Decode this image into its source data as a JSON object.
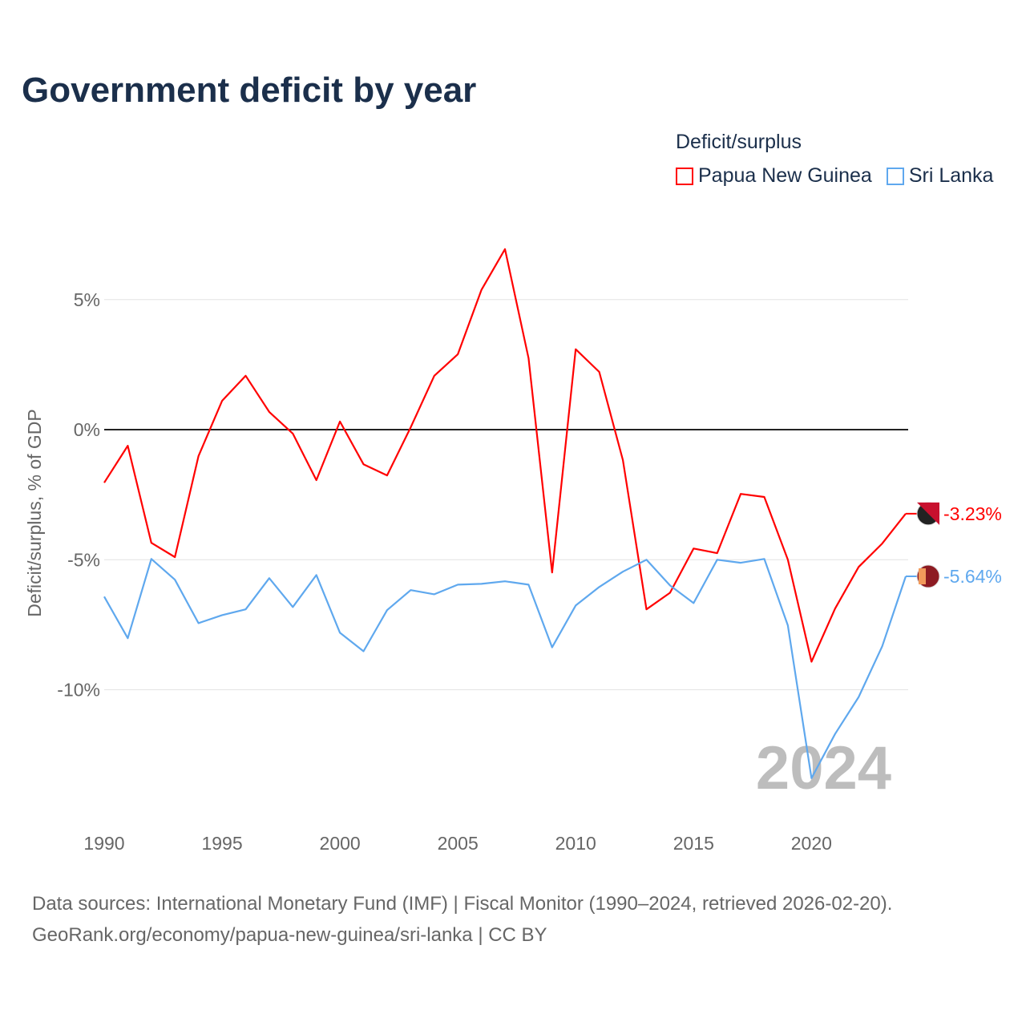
{
  "chart_data": {
    "type": "line",
    "title": "Government deficit by year",
    "ylabel": "Deficit/surplus, % of GDP",
    "xlabel": "",
    "legend_title": "Deficit/surplus",
    "legend_position": "top-right",
    "ylim": [
      -14.5,
      8.5
    ],
    "xlim": [
      1990,
      2024
    ],
    "y_ticks": [
      5,
      0,
      -5,
      -10
    ],
    "y_tick_labels": [
      "5%",
      "0%",
      "-5%",
      "-10%"
    ],
    "x_ticks": [
      1990,
      1995,
      2000,
      2005,
      2010,
      2015,
      2020
    ],
    "x_tick_labels": [
      "1990",
      "1995",
      "2000",
      "2005",
      "2010",
      "2015",
      "2020"
    ],
    "grid": true,
    "year_watermark": "2024",
    "x": [
      1990,
      1991,
      1992,
      1993,
      1994,
      1995,
      1996,
      1997,
      1998,
      1999,
      2000,
      2001,
      2002,
      2003,
      2004,
      2005,
      2006,
      2007,
      2008,
      2009,
      2010,
      2011,
      2012,
      2013,
      2014,
      2015,
      2016,
      2017,
      2018,
      2019,
      2020,
      2021,
      2022,
      2023,
      2024
    ],
    "series": [
      {
        "name": "Papua New Guinea",
        "color": "#ff0000",
        "end_label": "-3.23%",
        "values": [
          -2.04,
          -0.62,
          -4.35,
          -4.9,
          -1.02,
          1.11,
          2.07,
          0.68,
          -0.15,
          -1.94,
          0.31,
          -1.33,
          -1.76,
          0.09,
          2.07,
          2.9,
          5.37,
          6.94,
          2.75,
          -5.49,
          3.09,
          2.22,
          -1.17,
          -6.91,
          -6.27,
          -4.57,
          -4.75,
          -2.47,
          -2.59,
          -5.0,
          -8.92,
          -6.88,
          -5.28,
          -4.38,
          -3.23
        ]
      },
      {
        "name": "Sri Lanka",
        "color": "#5fa8ee",
        "end_label": "-5.64%",
        "values": [
          -6.42,
          -8.02,
          -4.97,
          -5.77,
          -7.44,
          -7.13,
          -6.91,
          -5.71,
          -6.82,
          -5.59,
          -7.81,
          -8.52,
          -6.94,
          -6.17,
          -6.33,
          -5.96,
          -5.93,
          -5.83,
          -5.96,
          -8.37,
          -6.76,
          -6.05,
          -5.46,
          -5.0,
          -5.99,
          -6.67,
          -5.0,
          -5.12,
          -4.97,
          -7.53,
          -13.4,
          -11.7,
          -10.28,
          -8.33,
          -5.64
        ]
      }
    ]
  },
  "footer": {
    "line1": "Data sources: International Monetary Fund (IMF) | Fiscal Monitor (1990–2024, retrieved 2026-02-20).",
    "line2": "GeoRank.org/economy/papua-new-guinea/sri-lanka | CC BY"
  }
}
